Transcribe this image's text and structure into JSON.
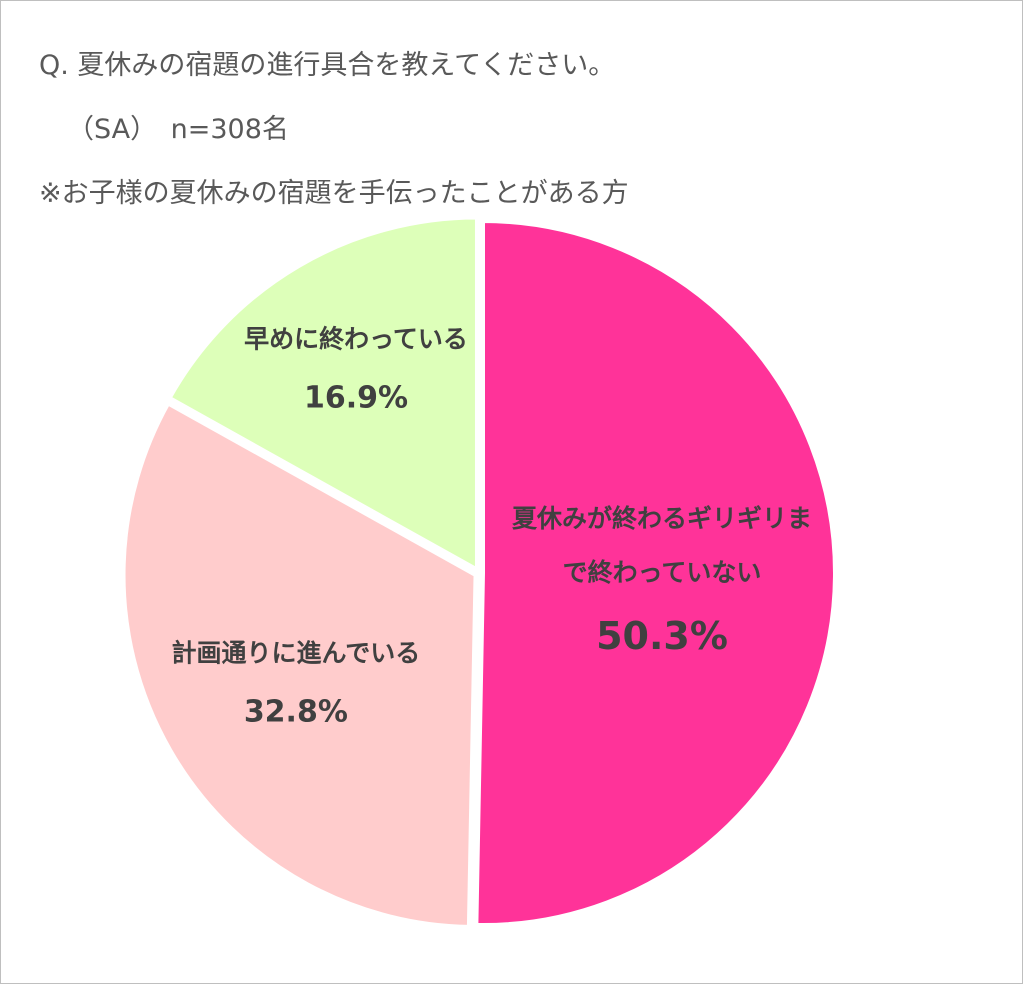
{
  "chart_data": {
    "type": "pie",
    "title": "Q. 夏休みの宿題の進行具合を教えてください。",
    "subtitle": "（SA）　n=308名",
    "note": "※お子様の夏休みの宿題を手伝ったことがある方",
    "categories": [
      "夏休みが終わるギリギリまで終わっていない",
      "計画通りに進んでいる",
      "早めに終わっている"
    ],
    "values": [
      50.3,
      32.8,
      16.9
    ],
    "value_labels": [
      "50.3%",
      "32.8%",
      "16.9%"
    ],
    "colors": [
      "#ff3399",
      "#ffcccc",
      "#ddffb9"
    ]
  }
}
